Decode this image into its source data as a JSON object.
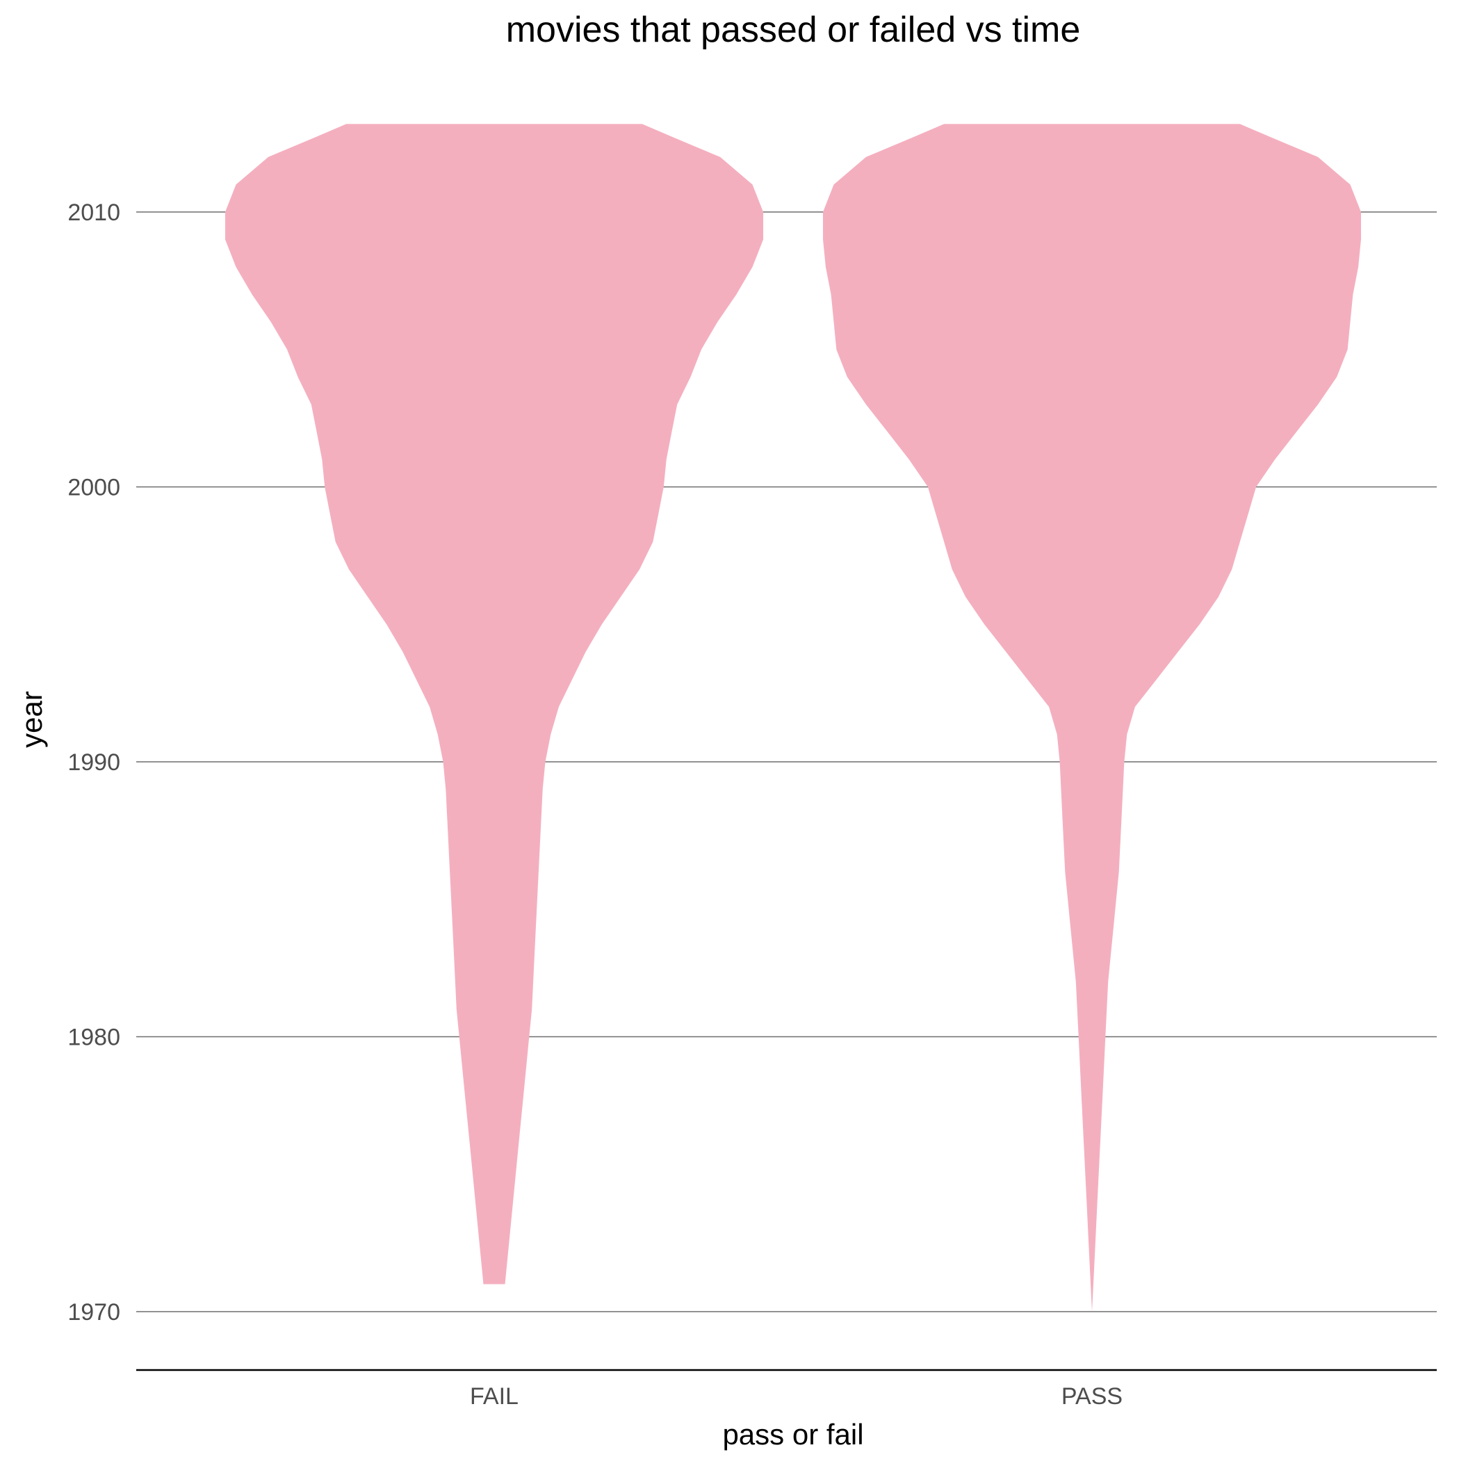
{
  "chart_data": {
    "type": "violin",
    "title": "movies that passed or failed vs time",
    "xlabel": "pass or fail",
    "ylabel": "year",
    "categories": [
      "FAIL",
      "PASS"
    ],
    "y_ticks": [
      1970,
      1980,
      1990,
      2000,
      2010
    ],
    "ylim": [
      1968,
      2023
    ],
    "grid": "horizontal major lines",
    "legend": "none",
    "fill_color": "#f4afbf",
    "violins": [
      {
        "category": "FAIL",
        "year_min": 1971,
        "year_max": 2013.2,
        "profile": [
          {
            "year": 1971.0,
            "width": 0.04
          },
          {
            "year": 1972.0,
            "width": 0.05
          },
          {
            "year": 1974.0,
            "width": 0.07
          },
          {
            "year": 1976.0,
            "width": 0.09
          },
          {
            "year": 1978.0,
            "width": 0.11
          },
          {
            "year": 1980.0,
            "width": 0.13
          },
          {
            "year": 1981.0,
            "width": 0.14
          },
          {
            "year": 1983.0,
            "width": 0.15
          },
          {
            "year": 1985.0,
            "width": 0.16
          },
          {
            "year": 1987.0,
            "width": 0.17
          },
          {
            "year": 1989.0,
            "width": 0.18
          },
          {
            "year": 1990.0,
            "width": 0.19
          },
          {
            "year": 1991.0,
            "width": 0.21
          },
          {
            "year": 1992.0,
            "width": 0.24
          },
          {
            "year": 1993.0,
            "width": 0.29
          },
          {
            "year": 1994.0,
            "width": 0.34
          },
          {
            "year": 1995.0,
            "width": 0.4
          },
          {
            "year": 1996.0,
            "width": 0.47
          },
          {
            "year": 1997.0,
            "width": 0.54
          },
          {
            "year": 1998.0,
            "width": 0.59
          },
          {
            "year": 1999.0,
            "width": 0.61
          },
          {
            "year": 2000.0,
            "width": 0.63
          },
          {
            "year": 2001.0,
            "width": 0.64
          },
          {
            "year": 2002.0,
            "width": 0.66
          },
          {
            "year": 2003.0,
            "width": 0.68
          },
          {
            "year": 2004.0,
            "width": 0.73
          },
          {
            "year": 2005.0,
            "width": 0.77
          },
          {
            "year": 2006.0,
            "width": 0.83
          },
          {
            "year": 2007.0,
            "width": 0.9
          },
          {
            "year": 2008.0,
            "width": 0.96
          },
          {
            "year": 2009.0,
            "width": 1.0
          },
          {
            "year": 2010.0,
            "width": 1.0
          },
          {
            "year": 2011.0,
            "width": 0.96
          },
          {
            "year": 2012.0,
            "width": 0.84
          },
          {
            "year": 2012.7,
            "width": 0.67
          },
          {
            "year": 2013.2,
            "width": 0.55
          }
        ]
      },
      {
        "category": "PASS",
        "year_min": 1970,
        "year_max": 2013.2,
        "profile": [
          {
            "year": 1970.0,
            "width": 0.0
          },
          {
            "year": 1972.0,
            "width": 0.01
          },
          {
            "year": 1974.0,
            "width": 0.02
          },
          {
            "year": 1976.0,
            "width": 0.03
          },
          {
            "year": 1978.0,
            "width": 0.04
          },
          {
            "year": 1980.0,
            "width": 0.05
          },
          {
            "year": 1982.0,
            "width": 0.06
          },
          {
            "year": 1984.0,
            "width": 0.08
          },
          {
            "year": 1986.0,
            "width": 0.1
          },
          {
            "year": 1988.0,
            "width": 0.11
          },
          {
            "year": 1990.0,
            "width": 0.12
          },
          {
            "year": 1991.0,
            "width": 0.13
          },
          {
            "year": 1992.0,
            "width": 0.16
          },
          {
            "year": 1993.0,
            "width": 0.24
          },
          {
            "year": 1994.0,
            "width": 0.32
          },
          {
            "year": 1995.0,
            "width": 0.4
          },
          {
            "year": 1996.0,
            "width": 0.47
          },
          {
            "year": 1997.0,
            "width": 0.52
          },
          {
            "year": 1998.0,
            "width": 0.55
          },
          {
            "year": 1999.0,
            "width": 0.58
          },
          {
            "year": 2000.0,
            "width": 0.61
          },
          {
            "year": 2001.0,
            "width": 0.68
          },
          {
            "year": 2002.0,
            "width": 0.76
          },
          {
            "year": 2003.0,
            "width": 0.84
          },
          {
            "year": 2004.0,
            "width": 0.91
          },
          {
            "year": 2005.0,
            "width": 0.95
          },
          {
            "year": 2006.0,
            "width": 0.96
          },
          {
            "year": 2007.0,
            "width": 0.97
          },
          {
            "year": 2008.0,
            "width": 0.99
          },
          {
            "year": 2009.0,
            "width": 1.0
          },
          {
            "year": 2010.0,
            "width": 1.0
          },
          {
            "year": 2011.0,
            "width": 0.96
          },
          {
            "year": 2012.0,
            "width": 0.84
          },
          {
            "year": 2012.7,
            "width": 0.67
          },
          {
            "year": 2013.2,
            "width": 0.55
          }
        ]
      }
    ]
  }
}
